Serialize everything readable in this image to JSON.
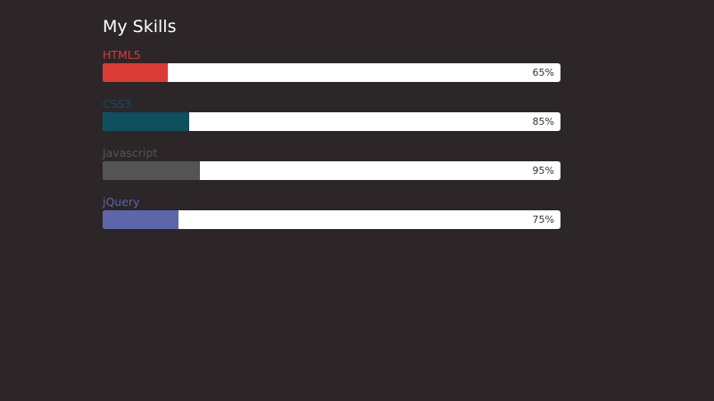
{
  "title": "My Skills",
  "skills": [
    {
      "label": "HTML5",
      "percent_label": "65%",
      "fill_fraction": 0.143,
      "color": "#dd3b35"
    },
    {
      "label": "CSS3",
      "percent_label": "85%",
      "fill_fraction": 0.189,
      "color": "#0e4f60"
    },
    {
      "label": "Javascript",
      "percent_label": "95%",
      "fill_fraction": 0.212,
      "color": "#545454"
    },
    {
      "label": "jQuery",
      "percent_label": "75%",
      "fill_fraction": 0.166,
      "color": "#5b67a8"
    }
  ]
}
